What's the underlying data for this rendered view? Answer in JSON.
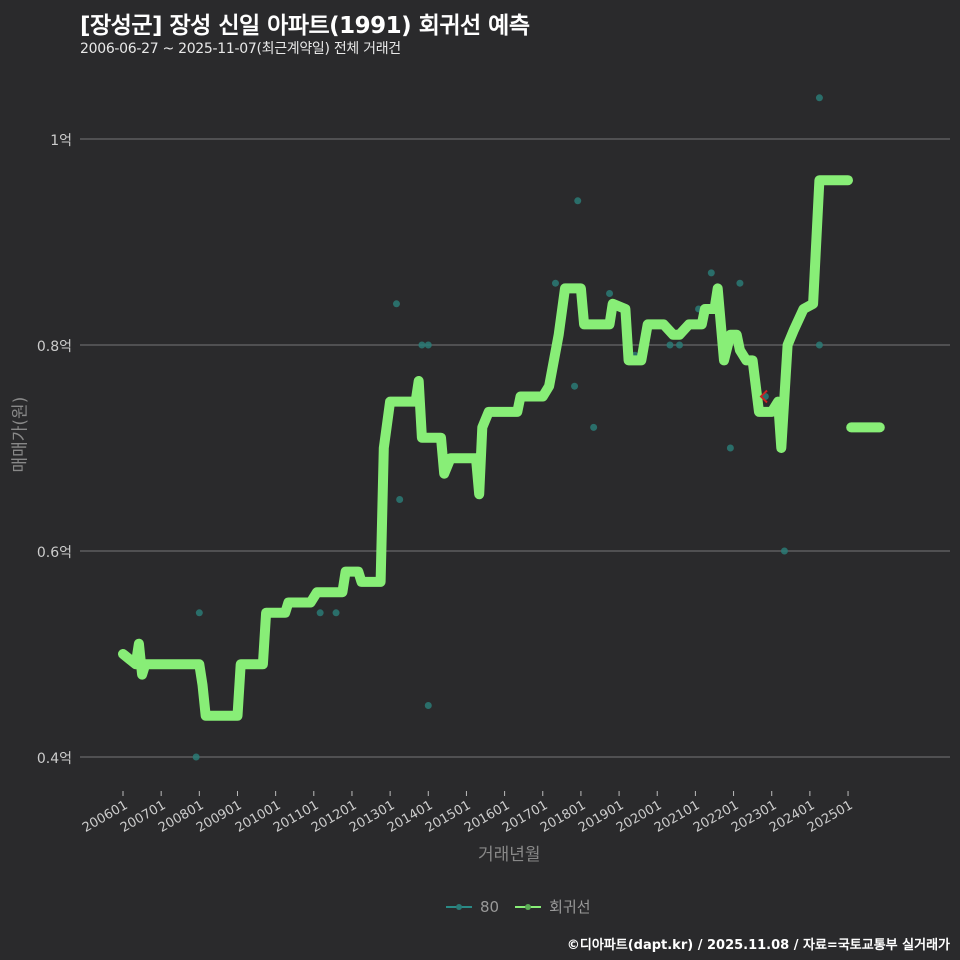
{
  "header": {
    "title": "[장성군] 장성 신일 아파트(1991) 회귀선 예측",
    "subtitle": "2006-06-27 ~ 2025-11-07(최근계약일) 전체 거래건"
  },
  "axes": {
    "ylabel": "매매가(원)",
    "xlabel": "거래년월",
    "yticks": [
      "1억",
      "0.8억",
      "0.6억",
      "0.4억"
    ],
    "xticks": [
      "200601",
      "200701",
      "200801",
      "200901",
      "201001",
      "201101",
      "201201",
      "201301",
      "201401",
      "201501",
      "201601",
      "201701",
      "201801",
      "201901",
      "202001",
      "202101",
      "202201",
      "202301",
      "202401",
      "202501"
    ]
  },
  "legend": {
    "items": [
      {
        "label": "80",
        "color": "#2a8a86"
      },
      {
        "label": "회귀선",
        "color": "#88ee77"
      }
    ]
  },
  "caption": "©디아파트(dapt.kr) / 2025.11.08 / 자료=국토교통부 실거래가",
  "colors": {
    "background": "#2a2a2c",
    "grid": "#777777",
    "regression": "#88ee77",
    "points": "#2a7a76",
    "marker": "#cc2222"
  },
  "chart_data": {
    "type": "line",
    "title": "[장성군] 장성 신일 아파트(1991) 회귀선 예측",
    "subtitle": "2006-06-27 ~ 2025-11-07(최근계약일) 전체 거래건",
    "xlabel": "거래년월",
    "ylabel": "매매가(원)",
    "ylim": [
      0.37,
      1.06
    ],
    "y_unit": "억",
    "grid": true,
    "legend_position": "bottom",
    "series": [
      {
        "name": "회귀선",
        "type": "step-line",
        "points": [
          [
            "2006-01",
            0.5
          ],
          [
            "2006-05",
            0.49
          ],
          [
            "2006-06",
            0.51
          ],
          [
            "2006-07",
            0.48
          ],
          [
            "2006-08",
            0.49
          ],
          [
            "2007-06",
            0.49
          ],
          [
            "2008-01",
            0.49
          ],
          [
            "2008-02",
            0.47
          ],
          [
            "2008-03",
            0.44
          ],
          [
            "2009-01",
            0.44
          ],
          [
            "2009-02",
            0.49
          ],
          [
            "2009-09",
            0.49
          ],
          [
            "2009-10",
            0.54
          ],
          [
            "2010-04",
            0.54
          ],
          [
            "2010-05",
            0.55
          ],
          [
            "2010-12",
            0.55
          ],
          [
            "2011-02",
            0.56
          ],
          [
            "2011-10",
            0.56
          ],
          [
            "2011-11",
            0.58
          ],
          [
            "2012-03",
            0.58
          ],
          [
            "2012-04",
            0.57
          ],
          [
            "2012-10",
            0.57
          ],
          [
            "2012-11",
            0.7
          ],
          [
            "2013-01",
            0.745
          ],
          [
            "2013-09",
            0.745
          ],
          [
            "2013-10",
            0.765
          ],
          [
            "2013-11",
            0.71
          ],
          [
            "2014-05",
            0.71
          ],
          [
            "2014-06",
            0.675
          ],
          [
            "2014-08",
            0.69
          ],
          [
            "2015-04",
            0.69
          ],
          [
            "2015-05",
            0.655
          ],
          [
            "2015-06",
            0.72
          ],
          [
            "2015-08",
            0.735
          ],
          [
            "2016-05",
            0.735
          ],
          [
            "2016-06",
            0.75
          ],
          [
            "2017-01",
            0.75
          ],
          [
            "2017-03",
            0.76
          ],
          [
            "2017-06",
            0.81
          ],
          [
            "2017-08",
            0.855
          ],
          [
            "2018-01",
            0.855
          ],
          [
            "2018-02",
            0.82
          ],
          [
            "2018-10",
            0.82
          ],
          [
            "2018-11",
            0.84
          ],
          [
            "2019-03",
            0.835
          ],
          [
            "2019-04",
            0.785
          ],
          [
            "2019-08",
            0.785
          ],
          [
            "2019-10",
            0.82
          ],
          [
            "2020-03",
            0.82
          ],
          [
            "2020-06",
            0.81
          ],
          [
            "2020-08",
            0.81
          ],
          [
            "2020-11",
            0.82
          ],
          [
            "2021-03",
            0.82
          ],
          [
            "2021-04",
            0.835
          ],
          [
            "2021-07",
            0.835
          ],
          [
            "2021-08",
            0.855
          ],
          [
            "2021-10",
            0.785
          ],
          [
            "2021-12",
            0.81
          ],
          [
            "2022-02",
            0.81
          ],
          [
            "2022-03",
            0.795
          ],
          [
            "2022-05",
            0.785
          ],
          [
            "2022-07",
            0.785
          ],
          [
            "2022-09",
            0.735
          ],
          [
            "2023-01",
            0.735
          ],
          [
            "2023-03",
            0.745
          ],
          [
            "2023-04",
            0.7
          ],
          [
            "2023-06",
            0.8
          ],
          [
            "2023-08",
            0.815
          ],
          [
            "2023-11",
            0.835
          ],
          [
            "2024-02",
            0.84
          ],
          [
            "2024-04",
            0.96
          ],
          [
            "2025-01",
            0.96
          ]
        ]
      },
      {
        "name": "회귀선 (예측)",
        "type": "line",
        "points": [
          [
            "2025-02",
            0.72
          ],
          [
            "2025-11",
            0.72
          ]
        ]
      },
      {
        "name": "80",
        "type": "scatter",
        "points": [
          [
            "2007-04",
            0.49
          ],
          [
            "2008-01",
            0.54
          ],
          [
            "2007-12",
            0.4
          ],
          [
            "2008-02",
            0.47
          ],
          [
            "2011-03",
            0.54
          ],
          [
            "2011-08",
            0.54
          ],
          [
            "2013-03",
            0.84
          ],
          [
            "2013-04",
            0.65
          ],
          [
            "2013-11",
            0.8
          ],
          [
            "2014-01",
            0.8
          ],
          [
            "2014-01",
            0.45
          ],
          [
            "2017-05",
            0.86
          ],
          [
            "2017-11",
            0.76
          ],
          [
            "2017-12",
            0.94
          ],
          [
            "2018-05",
            0.72
          ],
          [
            "2018-10",
            0.85
          ],
          [
            "2019-06",
            0.79
          ],
          [
            "2020-05",
            0.8
          ],
          [
            "2020-08",
            0.8
          ],
          [
            "2021-02",
            0.835
          ],
          [
            "2021-06",
            0.87
          ],
          [
            "2021-12",
            0.7
          ],
          [
            "2022-03",
            0.86
          ],
          [
            "2022-11",
            0.75
          ],
          [
            "2023-05",
            0.6
          ],
          [
            "2024-04",
            1.04
          ],
          [
            "2024-04",
            0.8
          ]
        ]
      }
    ],
    "annotations": [
      {
        "type": "marker",
        "symbol": "<",
        "color": "#cc2222",
        "x": "2022-09",
        "y": 0.75
      }
    ]
  }
}
